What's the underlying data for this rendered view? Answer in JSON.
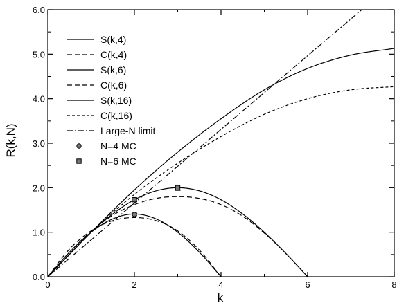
{
  "chart_data": {
    "type": "line",
    "xlabel": "k",
    "ylabel": "R(k,N)",
    "xlim": [
      0,
      8
    ],
    "ylim": [
      0,
      6
    ],
    "grid": false,
    "legend_position": "top-left",
    "x_ticks": [
      "0",
      "2",
      "4",
      "6",
      "8"
    ],
    "y_ticks": [
      "0.0",
      "1.0",
      "2.0",
      "3.0",
      "4.0",
      "5.0",
      "6.0"
    ],
    "series": [
      {
        "name": "S(k,4)",
        "kind": "line",
        "dash": "solid",
        "x": [
          0,
          0.5,
          1,
          1.5,
          2,
          2.5,
          3,
          3.5,
          4
        ],
        "y": [
          0,
          0.55,
          1.0,
          1.3,
          1.41,
          1.3,
          1.0,
          0.55,
          0
        ]
      },
      {
        "name": "C(k,4)",
        "kind": "line",
        "dash": "dashed",
        "x": [
          0,
          0.5,
          1,
          1.5,
          2,
          2.5,
          3,
          3.5,
          4
        ],
        "y": [
          0,
          0.62,
          1.03,
          1.26,
          1.33,
          1.26,
          1.03,
          0.6,
          0
        ]
      },
      {
        "name": "S(k,6)",
        "kind": "line",
        "dash": "solid",
        "x": [
          0,
          0.5,
          1,
          1.5,
          2,
          2.5,
          3,
          3.5,
          4,
          4.5,
          5,
          5.5,
          6
        ],
        "y": [
          0,
          0.5,
          1.0,
          1.41,
          1.73,
          1.93,
          2.0,
          1.93,
          1.73,
          1.41,
          1.0,
          0.52,
          0
        ]
      },
      {
        "name": "C(k,6)",
        "kind": "line",
        "dash": "dashed",
        "x": [
          0,
          0.5,
          1,
          1.5,
          2,
          2.5,
          3,
          3.5,
          4,
          4.5,
          5,
          5.5,
          6
        ],
        "y": [
          0,
          0.55,
          1.02,
          1.38,
          1.62,
          1.76,
          1.8,
          1.76,
          1.62,
          1.36,
          0.98,
          0.52,
          0
        ]
      },
      {
        "name": "S(k,16)",
        "kind": "line",
        "dash": "solid",
        "x": [
          0,
          1,
          2,
          3,
          4,
          5,
          6,
          7,
          8
        ],
        "y": [
          0,
          1.0,
          1.95,
          2.8,
          3.55,
          4.2,
          4.68,
          4.98,
          5.13
        ]
      },
      {
        "name": "C(k,16)",
        "kind": "line",
        "dash": "short-dashed",
        "x": [
          0,
          1,
          2,
          3,
          4,
          5,
          6,
          7,
          8
        ],
        "y": [
          0,
          1.0,
          1.85,
          2.55,
          3.15,
          3.65,
          4.0,
          4.2,
          4.27
        ]
      },
      {
        "name": "Large-N limit",
        "kind": "line",
        "dash": "dash-dot",
        "x": [
          0,
          7.25
        ],
        "y": [
          0,
          6.0
        ]
      },
      {
        "name": "N=4 MC",
        "kind": "points",
        "marker": "circle",
        "x": [
          2
        ],
        "y": [
          1.4
        ],
        "yerr": [
          0.03
        ]
      },
      {
        "name": "N=6 MC",
        "kind": "points",
        "marker": "square",
        "x": [
          2,
          3
        ],
        "y": [
          1.73,
          2.0
        ],
        "yerr": [
          0.04,
          0.06
        ]
      }
    ]
  }
}
